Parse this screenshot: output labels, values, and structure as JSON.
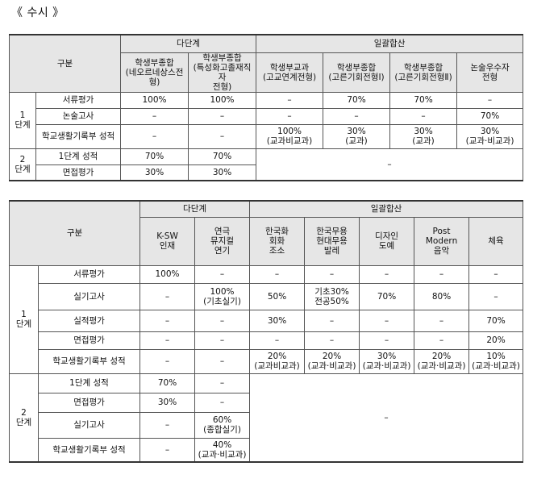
{
  "heading": "《 수시 》",
  "table1": {
    "gubun": "구분",
    "group_dadan": "다단계",
    "group_ilgwal": "일괄합산",
    "cols": [
      "학생부종합\n(네오르네상스전형)",
      "학생부종합\n(특성화고졸재직자\n전형)",
      "학생부교과\n(고교연계전형)",
      "학생부종합\n(고른기회전형Ⅰ)",
      "학생부종합\n(고른기회전형Ⅱ)",
      "논술우수자\n전형"
    ],
    "stage1": "1\n단계",
    "stage2": "2\n단계",
    "rows1": [
      {
        "label": "서류평가",
        "v": [
          "100%",
          "100%",
          "–",
          "70%",
          "70%",
          "–"
        ]
      },
      {
        "label": "논술고사",
        "v": [
          "–",
          "–",
          "–",
          "–",
          "–",
          "70%"
        ]
      },
      {
        "label": "학교생활기록부 성적",
        "v": [
          "–",
          "–",
          "100%\n(교과비교과)",
          "30%\n(교과)",
          "30%\n(교과)",
          "30%\n(교과·비교과)"
        ]
      }
    ],
    "rows2": [
      {
        "label": "1단계 성적",
        "v": [
          "70%",
          "70%"
        ]
      },
      {
        "label": "면접평가",
        "v": [
          "30%",
          "30%"
        ]
      }
    ],
    "merged_dash": "–"
  },
  "table2": {
    "gubun": "구분",
    "group_dadan": "다단계",
    "group_ilgwal": "일괄합산",
    "cols": [
      "K-SW\n인재",
      "연극\n뮤지컬\n연기",
      "한국화\n회화\n조소",
      "한국무용\n현대무용\n발레",
      "디자인\n도예",
      "Post\nModern\n음악",
      "체육"
    ],
    "stage1": "1\n단계",
    "stage2": "2\n단계",
    "rows1": [
      {
        "label": "서류평가",
        "v": [
          "100%",
          "–",
          "–",
          "–",
          "–",
          "–",
          "–"
        ]
      },
      {
        "label": "실기고사",
        "v": [
          "–",
          "100%\n(기초실기)",
          "50%",
          "기초30%\n전공50%",
          "70%",
          "80%",
          "–"
        ]
      },
      {
        "label": "실적평가",
        "v": [
          "–",
          "–",
          "30%",
          "–",
          "–",
          "–",
          "70%"
        ]
      },
      {
        "label": "면접평가",
        "v": [
          "–",
          "–",
          "–",
          "–",
          "–",
          "–",
          "20%"
        ]
      },
      {
        "label": "학교생활기록부 성적",
        "v": [
          "–",
          "–",
          "20%\n(교과비교과)",
          "20%\n(교과·비교과)",
          "30%\n(교과·비교과)",
          "20%\n(교과·비교과)",
          "10%\n(교과·비교과)"
        ]
      }
    ],
    "rows2": [
      {
        "label": "1단계 성적",
        "v": [
          "70%",
          "–"
        ]
      },
      {
        "label": "면접평가",
        "v": [
          "30%",
          "–"
        ]
      },
      {
        "label": "실기고사",
        "v": [
          "–",
          "60%\n(종합실기)"
        ]
      },
      {
        "label": "학교생활기록부 성적",
        "v": [
          "–",
          "40%\n(교과·비교과)"
        ]
      }
    ],
    "merged_dash": "–"
  }
}
